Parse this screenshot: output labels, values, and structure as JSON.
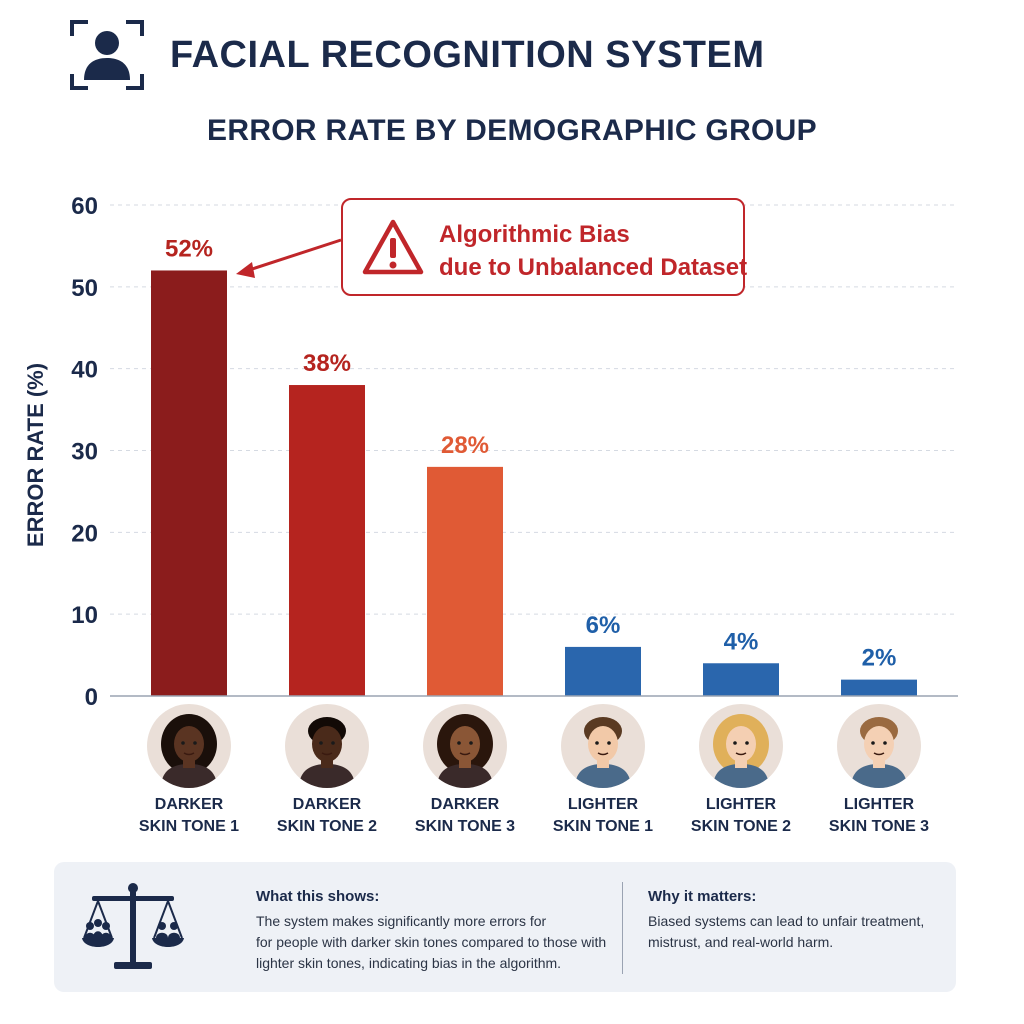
{
  "header": {
    "title": "FACIAL RECOGNITION SYSTEM",
    "icon": "face-scan-icon"
  },
  "callout": {
    "line1": "Algorithmic Bias",
    "line2": "due to Unbalanced Dataset",
    "icon": "warning-icon",
    "color": "#c0262a"
  },
  "chart_data": {
    "type": "bar",
    "title": "ERROR RATE BY DEMOGRAPHIC GROUP",
    "xlabel": "",
    "ylabel": "ERROR RATE (%)",
    "ylim": [
      0,
      60
    ],
    "yticks": [
      0,
      10,
      20,
      30,
      40,
      50,
      60
    ],
    "grid": true,
    "categories": [
      [
        "DARKER",
        "SKIN TONE 1"
      ],
      [
        "DARKER",
        "SKIN TONE 2"
      ],
      [
        "DARKER",
        "SKIN TONE 3"
      ],
      [
        "LIGHTER",
        "SKIN TONE 1"
      ],
      [
        "LIGHTER",
        "SKIN TONE 2"
      ],
      [
        "LIGHTER",
        "SKIN TONE 3"
      ]
    ],
    "values": [
      52,
      38,
      28,
      6,
      4,
      2
    ],
    "value_labels": [
      "52%",
      "38%",
      "28%",
      "6%",
      "4%",
      "2%"
    ],
    "colors": [
      "#8b1c1c",
      "#b5241f",
      "#e05a35",
      "#2a66ad",
      "#2a66ad",
      "#2a66ad"
    ],
    "label_colors": [
      "#b5241f",
      "#b5241f",
      "#e05a35",
      "#1f5fa8",
      "#1f5fa8",
      "#1f5fa8"
    ]
  },
  "avatars": [
    {
      "icon": "darker-skin-woman-avatar-icon",
      "skin": "#5a3422",
      "hair": "#1a0f0a"
    },
    {
      "icon": "darker-skin-man-avatar-icon",
      "skin": "#4a2a1a",
      "hair": "#120a06"
    },
    {
      "icon": "darker-skin-woman-avatar-icon",
      "skin": "#8a5636",
      "hair": "#2a160c"
    },
    {
      "icon": "lighter-skin-man-avatar-icon",
      "skin": "#f2c9a8",
      "hair": "#5a3a22"
    },
    {
      "icon": "lighter-skin-woman-avatar-icon",
      "skin": "#f4cfb2",
      "hair": "#e0b05a"
    },
    {
      "icon": "lighter-skin-man-avatar-icon",
      "skin": "#f4d0b4",
      "hair": "#9a6a40"
    }
  ],
  "info": {
    "icon": "balance-scale-icon",
    "what_title": "What this shows:",
    "what_lines": [
      "The system makes significantly more errors for",
      "for people with darker skin tones compared to those with",
      "lighter skin tones, indicating bias in the algorithm."
    ],
    "why_title": "Why it matters:",
    "why_lines": [
      "Biased systems can lead to unfair treatment,",
      "mistrust, and real-world harm."
    ]
  }
}
